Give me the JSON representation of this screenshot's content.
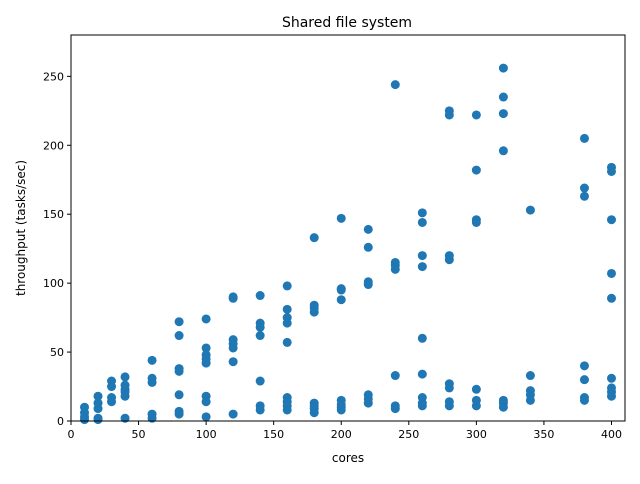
{
  "chart_data": {
    "type": "scatter",
    "title": "Shared file system",
    "xlabel": "cores",
    "ylabel": "throughput (tasks/sec)",
    "xlim": [
      0,
      410
    ],
    "ylim": [
      0,
      280
    ],
    "xticks": [
      0,
      50,
      100,
      150,
      200,
      250,
      300,
      350,
      400
    ],
    "yticks": [
      0,
      50,
      100,
      150,
      200,
      250
    ],
    "grid": false,
    "marker_color": "#1f77b4",
    "points": [
      [
        10,
        10
      ],
      [
        10,
        6
      ],
      [
        10,
        3
      ],
      [
        10,
        1
      ],
      [
        20,
        18
      ],
      [
        20,
        13
      ],
      [
        20,
        9
      ],
      [
        20,
        2
      ],
      [
        20,
        1
      ],
      [
        30,
        29
      ],
      [
        30,
        25
      ],
      [
        30,
        17
      ],
      [
        30,
        14
      ],
      [
        40,
        32
      ],
      [
        40,
        26
      ],
      [
        40,
        23
      ],
      [
        40,
        21
      ],
      [
        40,
        18
      ],
      [
        40,
        2
      ],
      [
        60,
        44
      ],
      [
        60,
        31
      ],
      [
        60,
        28
      ],
      [
        60,
        5
      ],
      [
        60,
        2
      ],
      [
        80,
        72
      ],
      [
        80,
        62
      ],
      [
        80,
        38
      ],
      [
        80,
        36
      ],
      [
        80,
        19
      ],
      [
        80,
        7
      ],
      [
        80,
        5
      ],
      [
        100,
        74
      ],
      [
        100,
        53
      ],
      [
        100,
        48
      ],
      [
        100,
        45
      ],
      [
        100,
        42
      ],
      [
        100,
        18
      ],
      [
        100,
        14
      ],
      [
        100,
        3
      ],
      [
        120,
        90
      ],
      [
        120,
        89
      ],
      [
        120,
        59
      ],
      [
        120,
        56
      ],
      [
        120,
        53
      ],
      [
        120,
        43
      ],
      [
        120,
        5
      ],
      [
        140,
        91
      ],
      [
        140,
        71
      ],
      [
        140,
        68
      ],
      [
        140,
        62
      ],
      [
        140,
        29
      ],
      [
        140,
        11
      ],
      [
        140,
        8
      ],
      [
        160,
        98
      ],
      [
        160,
        81
      ],
      [
        160,
        75
      ],
      [
        160,
        71
      ],
      [
        160,
        57
      ],
      [
        160,
        17
      ],
      [
        160,
        14
      ],
      [
        160,
        11
      ],
      [
        160,
        8
      ],
      [
        180,
        133
      ],
      [
        180,
        84
      ],
      [
        180,
        82
      ],
      [
        180,
        79
      ],
      [
        180,
        13
      ],
      [
        180,
        11
      ],
      [
        180,
        9
      ],
      [
        180,
        6
      ],
      [
        200,
        147
      ],
      [
        200,
        96
      ],
      [
        200,
        95
      ],
      [
        200,
        88
      ],
      [
        200,
        15
      ],
      [
        200,
        12
      ],
      [
        200,
        10
      ],
      [
        200,
        8
      ],
      [
        220,
        139
      ],
      [
        220,
        126
      ],
      [
        220,
        101
      ],
      [
        220,
        99
      ],
      [
        220,
        19
      ],
      [
        220,
        16
      ],
      [
        220,
        13
      ],
      [
        240,
        244
      ],
      [
        240,
        115
      ],
      [
        240,
        113
      ],
      [
        240,
        110
      ],
      [
        240,
        33
      ],
      [
        240,
        11
      ],
      [
        240,
        9
      ],
      [
        260,
        151
      ],
      [
        260,
        144
      ],
      [
        260,
        120
      ],
      [
        260,
        112
      ],
      [
        260,
        60
      ],
      [
        260,
        34
      ],
      [
        260,
        17
      ],
      [
        260,
        13
      ],
      [
        260,
        11
      ],
      [
        280,
        225
      ],
      [
        280,
        222
      ],
      [
        280,
        120
      ],
      [
        280,
        117
      ],
      [
        280,
        27
      ],
      [
        280,
        24
      ],
      [
        280,
        14
      ],
      [
        280,
        11
      ],
      [
        300,
        222
      ],
      [
        300,
        182
      ],
      [
        300,
        146
      ],
      [
        300,
        144
      ],
      [
        300,
        23
      ],
      [
        300,
        15
      ],
      [
        300,
        11
      ],
      [
        320,
        256
      ],
      [
        320,
        235
      ],
      [
        320,
        223
      ],
      [
        320,
        196
      ],
      [
        320,
        15
      ],
      [
        320,
        13
      ],
      [
        320,
        10
      ],
      [
        340,
        153
      ],
      [
        340,
        33
      ],
      [
        340,
        22
      ],
      [
        340,
        19
      ],
      [
        340,
        15
      ],
      [
        380,
        205
      ],
      [
        380,
        169
      ],
      [
        380,
        163
      ],
      [
        380,
        40
      ],
      [
        380,
        30
      ],
      [
        380,
        17
      ],
      [
        380,
        15
      ],
      [
        400,
        184
      ],
      [
        400,
        181
      ],
      [
        400,
        146
      ],
      [
        400,
        107
      ],
      [
        400,
        89
      ],
      [
        400,
        31
      ],
      [
        400,
        24
      ],
      [
        400,
        21
      ],
      [
        400,
        18
      ]
    ]
  }
}
